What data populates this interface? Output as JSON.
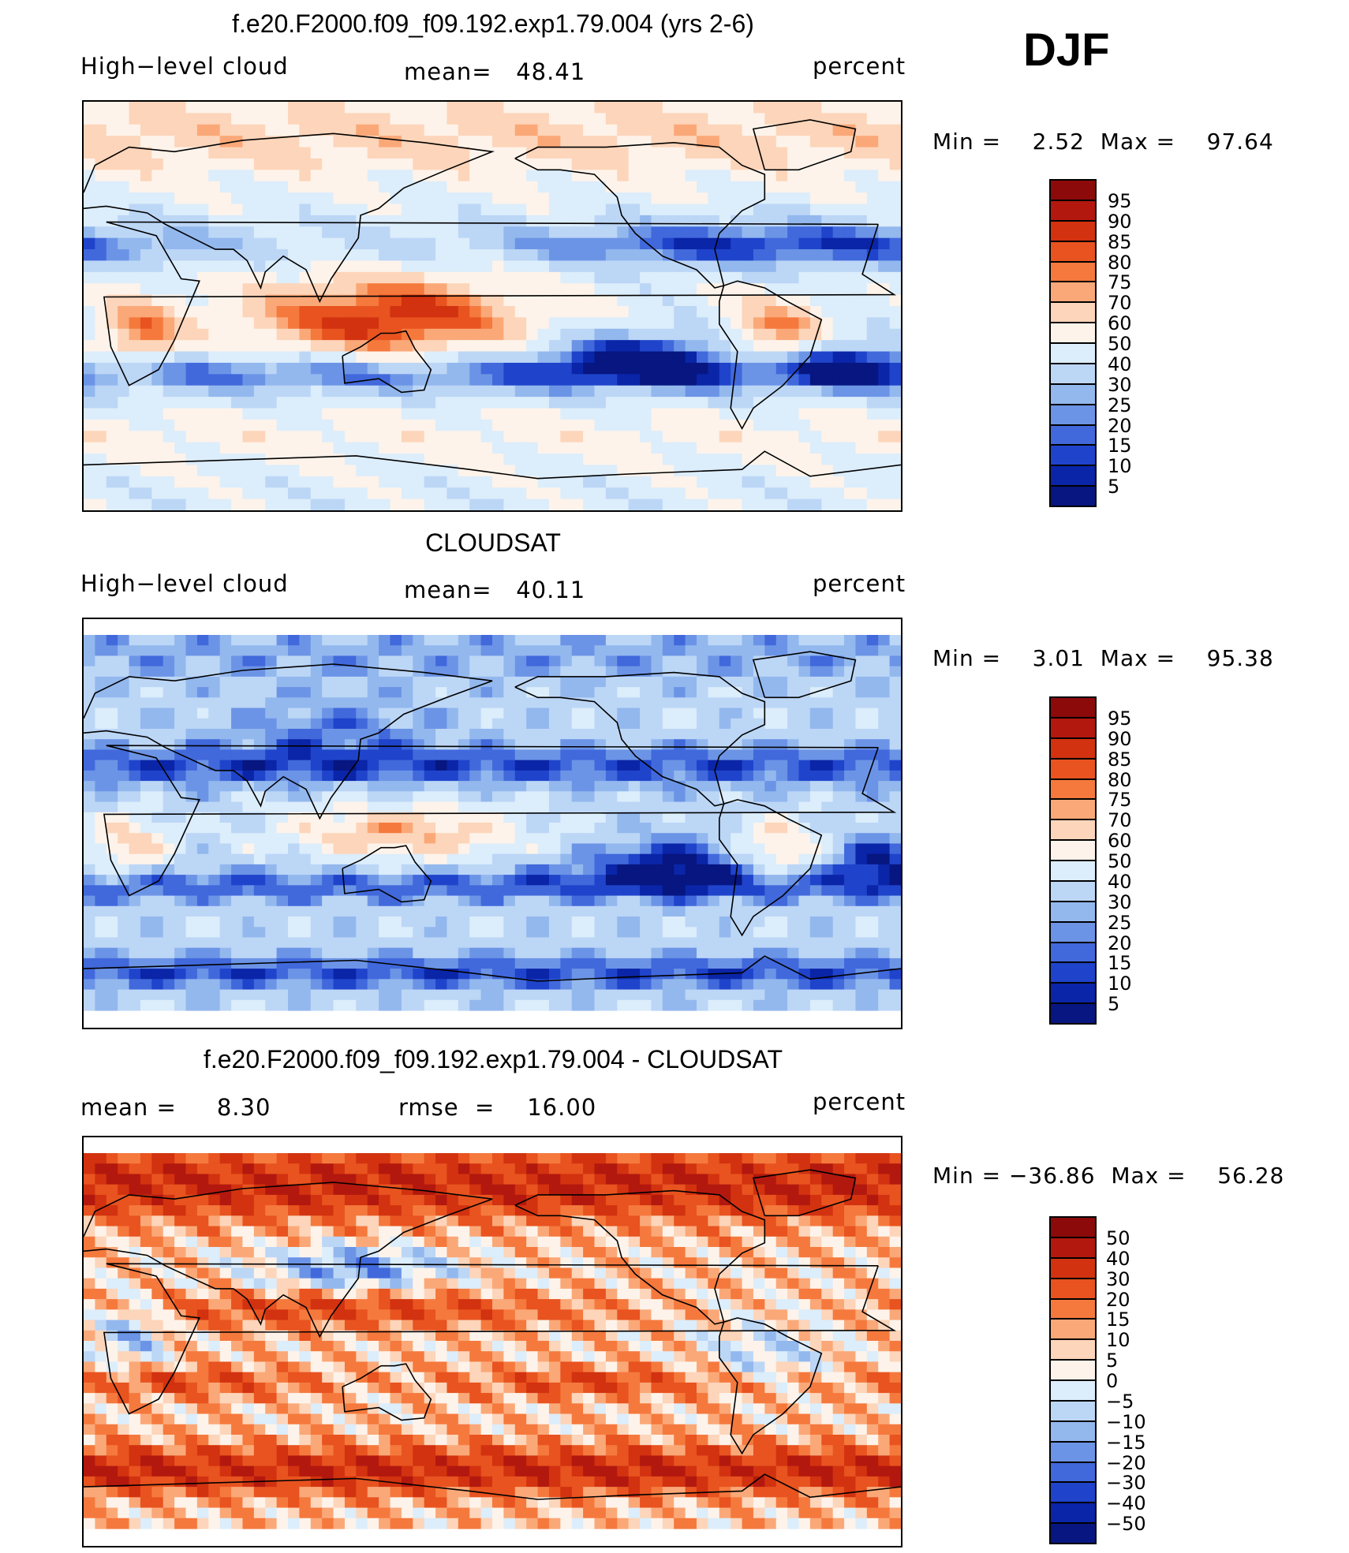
{
  "season_label": "DJF",
  "chart_data": [
    {
      "type": "heatmap",
      "title": "f.e20.F2000.f09_f09.192.exp1.79.004 (yrs 2-6)",
      "variable": "High−level cloud",
      "stat_text": "mean=   48.41",
      "units": "percent",
      "minmax_text": "Min =    2.52  Max =    97.64",
      "min": 2.52,
      "max": 97.64,
      "mean": 48.41,
      "colorbar_levels": [
        "95",
        "90",
        "85",
        "80",
        "75",
        "70",
        "60",
        "50",
        "40",
        "30",
        "25",
        "20",
        "15",
        "10",
        "5"
      ],
      "colors": [
        "#8c0a0a",
        "#b3180f",
        "#d2320f",
        "#e8531f",
        "#f5793d",
        "#fba878",
        "#fdd5ba",
        "#fdf3ea",
        "#dcedfb",
        "#bcd6f6",
        "#93b8ee",
        "#6c94e6",
        "#4169dc",
        "#1f44cb",
        "#0a25a8",
        "#071680"
      ],
      "field": "model",
      "maxval": 97.64
    },
    {
      "type": "heatmap",
      "title": "CLOUDSAT",
      "variable": "High−level cloud",
      "stat_text": "mean=   40.11",
      "units": "percent",
      "minmax_text": "Min =    3.01  Max =    95.38",
      "min": 3.01,
      "max": 95.38,
      "mean": 40.11,
      "colorbar_levels": [
        "95",
        "90",
        "85",
        "80",
        "75",
        "70",
        "60",
        "50",
        "40",
        "30",
        "25",
        "20",
        "15",
        "10",
        "5"
      ],
      "colors": [
        "#8c0a0a",
        "#b3180f",
        "#d2320f",
        "#e8531f",
        "#f5793d",
        "#fba878",
        "#fdd5ba",
        "#fdf3ea",
        "#dcedfb",
        "#bcd6f6",
        "#93b8ee",
        "#6c94e6",
        "#4169dc",
        "#1f44cb",
        "#0a25a8",
        "#071680"
      ],
      "field": "obs",
      "maxval": 95.38
    },
    {
      "type": "heatmap",
      "title": "f.e20.F2000.f09_f09.192.exp1.79.004 - CLOUDSAT",
      "left_stat_text": "mean =     8.30",
      "stat_text": "rmse  =    16.00",
      "units": "percent",
      "minmax_text": "Min = −36.86  Max =    56.28",
      "min": -36.86,
      "max": 56.28,
      "mean": 8.3,
      "rmse": 16.0,
      "colorbar_levels": [
        "50",
        "40",
        "30",
        "20",
        "15",
        "10",
        "5",
        "0",
        "−5",
        "−10",
        "−15",
        "−20",
        "−30",
        "−40",
        "−50"
      ],
      "colors": [
        "#8c0a0a",
        "#b3180f",
        "#d2320f",
        "#e8531f",
        "#f5793d",
        "#fba878",
        "#fdd5ba",
        "#fdf3ea",
        "#dcedfb",
        "#bcd6f6",
        "#93b8ee",
        "#6c94e6",
        "#4169dc",
        "#1f44cb",
        "#0a25a8",
        "#071680"
      ],
      "field": "diff",
      "maxval": 56.28
    }
  ]
}
